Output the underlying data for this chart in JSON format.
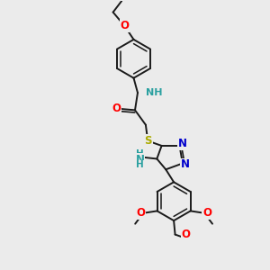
{
  "bg_color": "#ebebeb",
  "bond_color": "#1a1a1a",
  "bond_width": 1.4,
  "atom_colors": {
    "O": "#ff0000",
    "N": "#0000cc",
    "S": "#aaaa00",
    "NH": "#2aa0a0",
    "C": "#1a1a1a"
  },
  "font_size": 8.5,
  "font_size_nh": 8.0
}
